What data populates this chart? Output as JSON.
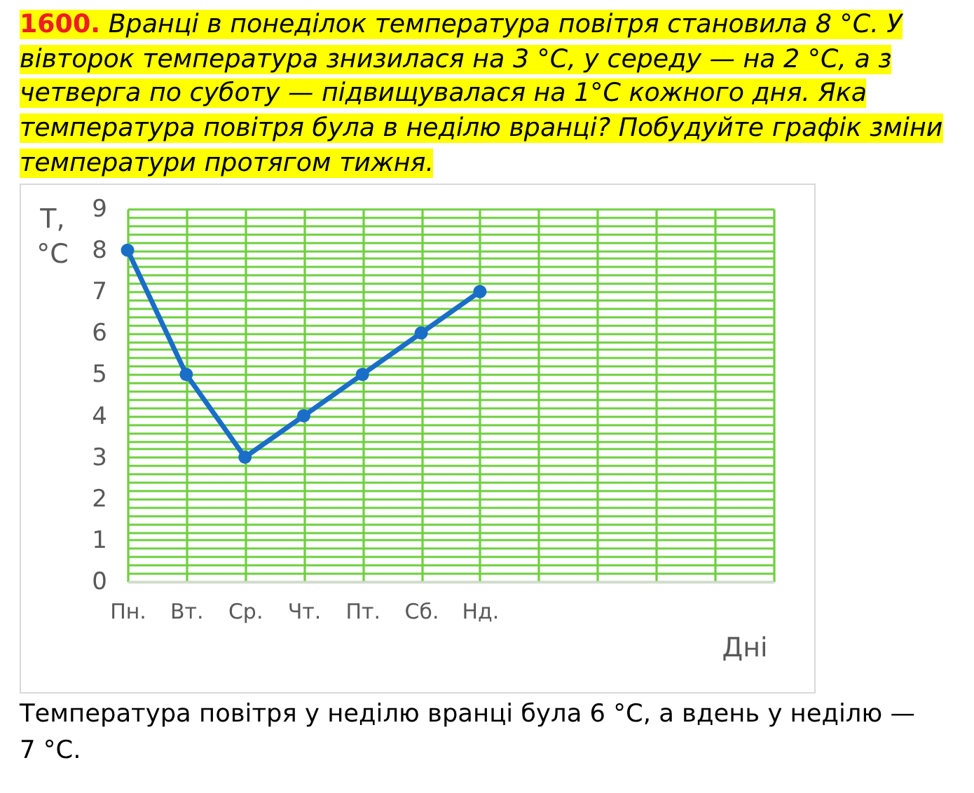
{
  "chart_data": {
    "type": "line",
    "title": "1600. Вранці в понеділок температура повітря становила 8 °C. У вівторок температура знизилася на 3 °C, у середу — на 2 °C, а з четверга по суботу — підвищувалася на 1°C кожного дня. Яка температура повітря була в неділю вранці? Побудуйте графік зміни температури протягом тижня.",
    "xlabel": "Дні",
    "ylabel": "T, °C",
    "categories": [
      "Пн.",
      "Вт.",
      "Ср.",
      "Чт.",
      "Пт.",
      "Сб.",
      "Нд.",
      null,
      null,
      null,
      null,
      null
    ],
    "series": [
      {
        "color": "#1a6ec8",
        "values": [
          8,
          5,
          3,
          4,
          5,
          6,
          7,
          null,
          null,
          null,
          null,
          null
        ]
      }
    ],
    "ylim": [
      0,
      9
    ],
    "yticks": [
      0,
      {
        "value": 0.2,
        "label": null
      },
      {
        "value": 0.4,
        "label": null
      },
      {
        "value": 0.6,
        "label": null
      },
      {
        "value": 0.8,
        "label": null
      },
      1,
      {
        "value": 1.2,
        "label": null
      },
      {
        "value": 1.4,
        "label": null
      },
      {
        "value": 1.6,
        "label": null
      },
      {
        "value": 1.8,
        "label": null
      },
      2,
      {
        "value": 2.2,
        "label": null
      },
      {
        "value": 2.4,
        "label": null
      },
      {
        "value": 2.6,
        "label": null
      },
      {
        "value": 2.8,
        "label": null
      },
      3,
      {
        "value": 3.2,
        "label": null
      },
      {
        "value": 3.4,
        "label": null
      },
      {
        "value": 3.6,
        "label": null
      },
      {
        "value": 3.8,
        "label": null
      },
      4,
      {
        "value": 4.2,
        "label": null
      },
      {
        "value": 4.4,
        "label": null
      },
      {
        "value": 4.6,
        "label": null
      },
      {
        "value": 4.8,
        "label": null
      },
      5,
      {
        "value": 5.2,
        "label": null
      },
      {
        "value": 5.4,
        "label": null
      },
      {
        "value": 5.6,
        "label": null
      },
      {
        "value": 5.8,
        "label": null
      },
      6,
      {
        "value": 6.2,
        "label": null
      },
      {
        "value": 6.4,
        "label": null
      },
      {
        "value": 6.6,
        "label": null
      },
      {
        "value": 6.8,
        "label": null
      },
      7,
      {
        "value": 7.2,
        "label": null
      },
      {
        "value": 7.4,
        "label": null
      },
      {
        "value": 7.6,
        "label": null
      },
      {
        "value": 7.8,
        "label": null
      },
      8,
      {
        "value": 8.2,
        "label": null
      },
      {
        "value": 8.4,
        "label": null
      },
      {
        "value": 8.6,
        "label": null
      },
      {
        "value": 8.8,
        "label": null
      },
      9
    ],
    "grid": true,
    "marker": "circle",
    "line_style": "solid",
    "annotations": [
      "Температура повітря у неділю вранці була 6 °C, а вдень у неділю — 7 °C."
    ]
  }
}
